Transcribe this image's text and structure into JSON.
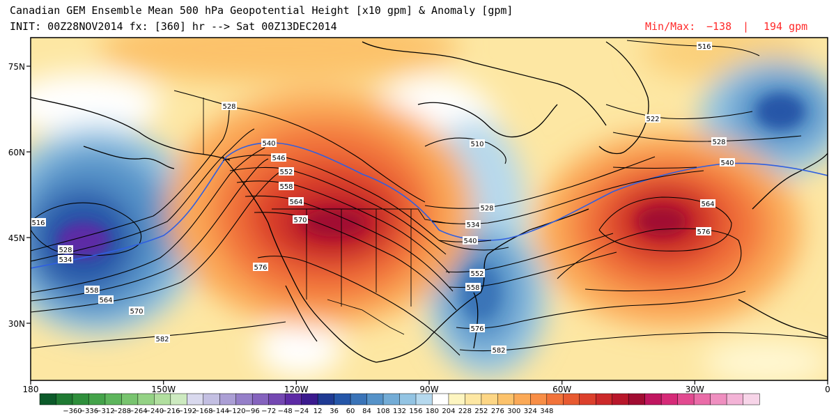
{
  "header": {
    "title_line1": "Canadian GEM Ensemble Mean 500 hPa Geopotential Height [x10 gpm] & Anomaly [gpm]",
    "title_line2": "INIT: 00Z28NOV2014 fx: [360] hr --> Sat 00Z13DEC2014",
    "minmax_label": "Min/Max:",
    "min_value": "−138",
    "separator": "|",
    "max_value": "194 gpm"
  },
  "map": {
    "lat_labels": [
      "75N",
      "60N",
      "45N",
      "30N"
    ],
    "lon_labels": [
      "180",
      "150W",
      "120W",
      "90W",
      "60W",
      "30W",
      "0"
    ],
    "contour_labels": [
      {
        "text": "516",
        "line": "pacific-516"
      },
      {
        "text": "528",
        "line": "pacific-528"
      },
      {
        "text": "534",
        "line": "pacific-534"
      },
      {
        "text": "558",
        "line": "pacific-558"
      },
      {
        "text": "564",
        "line": "pacific-564"
      },
      {
        "text": "570",
        "line": "pacific-570"
      },
      {
        "text": "582",
        "line": "pacific-582"
      },
      {
        "text": "528",
        "line": "yukon-528"
      },
      {
        "text": "540",
        "line": "ridge-540"
      },
      {
        "text": "546",
        "line": "ridge-546"
      },
      {
        "text": "552",
        "line": "ridge-552"
      },
      {
        "text": "558",
        "line": "ridge-558"
      },
      {
        "text": "564",
        "line": "ridge-564"
      },
      {
        "text": "570",
        "line": "ridge-570"
      },
      {
        "text": "576",
        "line": "ridge-576"
      },
      {
        "text": "510",
        "line": "hudson-510"
      },
      {
        "text": "528",
        "line": "east-528"
      },
      {
        "text": "534",
        "line": "east-534"
      },
      {
        "text": "540",
        "line": "east-540"
      },
      {
        "text": "552",
        "line": "east-552"
      },
      {
        "text": "558",
        "line": "east-558"
      },
      {
        "text": "576",
        "line": "east-576"
      },
      {
        "text": "582",
        "line": "east-582"
      },
      {
        "text": "516",
        "line": "arctic-516"
      },
      {
        "text": "522",
        "line": "atlantic-522"
      },
      {
        "text": "528",
        "line": "atlantic-528"
      },
      {
        "text": "540",
        "line": "atlantic-540"
      },
      {
        "text": "564",
        "line": "atlantic-564"
      },
      {
        "text": "576",
        "line": "atlantic-576"
      }
    ]
  },
  "colorbar": {
    "colors": [
      "#0c5a2a",
      "#1f7a33",
      "#2f8f3c",
      "#44a34a",
      "#5db55c",
      "#78c46f",
      "#94d285",
      "#b1df9f",
      "#cdeac0",
      "#d9d9ee",
      "#c3bfe2",
      "#ab9fd5",
      "#957fc9",
      "#8563be",
      "#7448b2",
      "#5d2aa5",
      "#3b1a8e",
      "#1f3a93",
      "#2556a8",
      "#3a74b8",
      "#5592c8",
      "#73acd6",
      "#93c4e3",
      "#b6d9ee",
      "#ffffff",
      "#fdf5c0",
      "#fde7a3",
      "#fdd685",
      "#fcc26b",
      "#fba957",
      "#f88e46",
      "#f2733a",
      "#e85a31",
      "#dc402c",
      "#cc292a",
      "#b8172b",
      "#a10c32",
      "#c01660",
      "#d62a78",
      "#e24a90",
      "#ea6ca8",
      "#ef8fc0",
      "#f3b3d6",
      "#f7d4e8"
    ],
    "labels": [
      "−360",
      "−336",
      "−312",
      "−288",
      "−264",
      "−240",
      "−216",
      "−192",
      "−168",
      "−144",
      "−120",
      "−96",
      "−72",
      "−48",
      "−24",
      "12",
      "36",
      "60",
      "84",
      "108",
      "132",
      "156",
      "180",
      "204",
      "228",
      "252",
      "276",
      "300",
      "324",
      "348"
    ]
  },
  "colors": {
    "positive_anomaly_peak": "#a10c32",
    "negative_anomaly_peak": "#1f3a93",
    "contour_540": "#2f5fe0",
    "minmax_text": "#ff2a2a"
  }
}
